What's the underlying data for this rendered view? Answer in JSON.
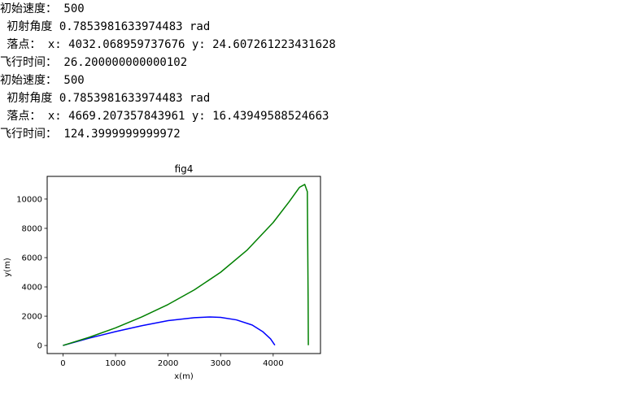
{
  "console": {
    "lines": [
      "初始速度： 500",
      " 初射角度 0.7853981633974483 rad",
      " 落点： x: 4032.068959737676 y: 24.607261223431628",
      "飞行时间： 26.200000000000102",
      "初始速度： 500",
      " 初射角度 0.7853981633974483 rad",
      " 落点： x: 4669.207357843961 y: 16.43949588524663",
      "飞行时间： 124.3999999999972"
    ]
  },
  "chart_data": {
    "type": "line",
    "title": "fig4",
    "xlabel": "x(m)",
    "ylabel": "y(m)",
    "xlim": [
      -300,
      4900
    ],
    "ylim": [
      -550,
      11550
    ],
    "xticks": [
      0,
      1000,
      2000,
      3000,
      4000
    ],
    "yticks": [
      0,
      2000,
      4000,
      6000,
      8000,
      10000
    ],
    "grid": false,
    "series": [
      {
        "color": "#0000ff",
        "x": [
          0,
          500,
          1000,
          1500,
          2000,
          2500,
          2800,
          3000,
          3300,
          3600,
          3800,
          3950,
          4032
        ],
        "y": [
          0,
          500,
          950,
          1350,
          1700,
          1900,
          1950,
          1920,
          1750,
          1400,
          950,
          450,
          25
        ]
      },
      {
        "color": "#008000",
        "x": [
          0,
          500,
          1000,
          1500,
          2000,
          2500,
          3000,
          3500,
          4000,
          4300,
          4500,
          4600,
          4650,
          4665,
          4669
        ],
        "y": [
          0,
          560,
          1200,
          1950,
          2800,
          3800,
          5000,
          6500,
          8400,
          9800,
          10800,
          11000,
          10500,
          3000,
          16
        ]
      }
    ]
  }
}
